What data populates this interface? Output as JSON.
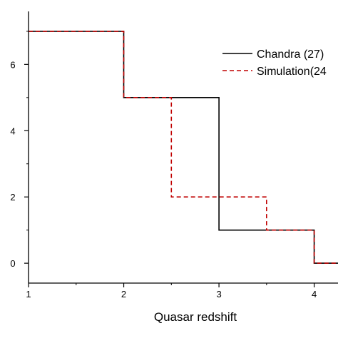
{
  "chart_data": {
    "type": "line",
    "step": true,
    "title": "",
    "xlabel": "Quasar redshift",
    "ylabel": "",
    "xlim": [
      1,
      4.25
    ],
    "ylim": [
      -0.6,
      7.6
    ],
    "x_ticks": [
      1,
      2,
      3,
      4
    ],
    "y_ticks": [
      0,
      2,
      4,
      6
    ],
    "grid": false,
    "legend_placement": "top-right",
    "series": [
      {
        "name": "Chandra (27)",
        "color": "#000000",
        "line_style": "solid",
        "x": [
          1,
          2,
          2,
          3,
          3,
          4,
          4,
          4.25
        ],
        "y": [
          7,
          7,
          5,
          5,
          1,
          1,
          0,
          0
        ]
      },
      {
        "name": "Simulation(24",
        "color": "#c00000",
        "line_style": "dashed",
        "x": [
          1,
          2,
          2,
          2.5,
          2.5,
          3.5,
          3.5,
          4,
          4,
          4.25
        ],
        "y": [
          7,
          7,
          5,
          5,
          2,
          2,
          1,
          1,
          0,
          0
        ]
      }
    ]
  }
}
